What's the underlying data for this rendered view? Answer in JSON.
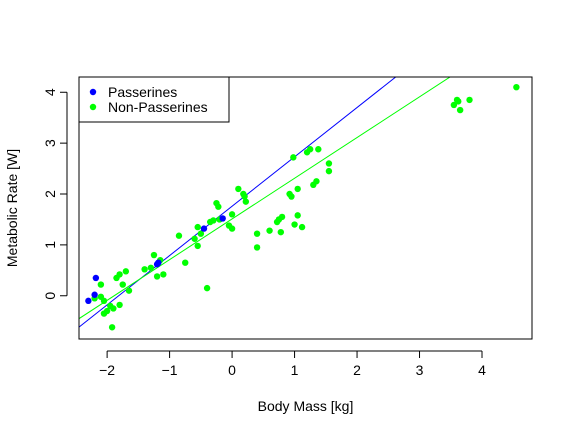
{
  "chart_data": {
    "type": "scatter",
    "xlabel": "Body Mass [kg]",
    "ylabel": "Metabolic Rate [W]",
    "xlim": [
      -2.45,
      4.8
    ],
    "ylim": [
      -0.85,
      4.3
    ],
    "xticks": [
      -2,
      -1,
      0,
      1,
      2,
      3,
      4
    ],
    "yticks": [
      0,
      1,
      2,
      3,
      4
    ],
    "grid": false,
    "legend_position": "top-left",
    "series": [
      {
        "name": "Passerines",
        "color": "#0000ff",
        "points": [
          [
            -2.3,
            -0.1
          ],
          [
            -2.2,
            0.02
          ],
          [
            -2.18,
            0.35
          ],
          [
            -1.2,
            0.62
          ],
          [
            -1.18,
            0.65
          ],
          [
            -0.45,
            1.32
          ],
          [
            -0.15,
            1.52
          ]
        ],
        "fit": {
          "intercept": 1.76,
          "slope": 0.97
        }
      },
      {
        "name": "Non-Passerines",
        "color": "#00ff00",
        "points": [
          [
            -2.2,
            -0.05
          ],
          [
            -2.1,
            0.22
          ],
          [
            -2.05,
            -0.1
          ],
          [
            -2.1,
            -0.02
          ],
          [
            -2.05,
            -0.35
          ],
          [
            -2.0,
            -0.3
          ],
          [
            -1.95,
            -0.2
          ],
          [
            -1.92,
            -0.62
          ],
          [
            -1.9,
            -0.25
          ],
          [
            -1.85,
            0.35
          ],
          [
            -1.8,
            0.42
          ],
          [
            -1.8,
            -0.18
          ],
          [
            -1.75,
            0.22
          ],
          [
            -1.7,
            0.48
          ],
          [
            -1.65,
            0.1
          ],
          [
            -1.4,
            0.52
          ],
          [
            -1.3,
            0.55
          ],
          [
            -1.25,
            0.8
          ],
          [
            -1.2,
            0.38
          ],
          [
            -1.15,
            0.7
          ],
          [
            -1.1,
            0.42
          ],
          [
            -0.85,
            1.18
          ],
          [
            -0.75,
            0.65
          ],
          [
            -0.6,
            1.12
          ],
          [
            -0.55,
            1.35
          ],
          [
            -0.55,
            0.98
          ],
          [
            -0.5,
            1.22
          ],
          [
            -0.4,
            0.15
          ],
          [
            -0.35,
            1.45
          ],
          [
            -0.3,
            1.48
          ],
          [
            -0.25,
            1.82
          ],
          [
            -0.22,
            1.75
          ],
          [
            -0.2,
            1.5
          ],
          [
            -0.05,
            1.38
          ],
          [
            0.0,
            1.32
          ],
          [
            0.0,
            1.6
          ],
          [
            0.1,
            2.1
          ],
          [
            0.18,
            2.0
          ],
          [
            0.2,
            1.95
          ],
          [
            0.22,
            1.85
          ],
          [
            0.4,
            1.22
          ],
          [
            0.4,
            0.95
          ],
          [
            0.6,
            1.28
          ],
          [
            0.72,
            1.45
          ],
          [
            0.75,
            1.5
          ],
          [
            0.78,
            1.25
          ],
          [
            0.8,
            1.55
          ],
          [
            0.92,
            2.0
          ],
          [
            0.95,
            1.95
          ],
          [
            0.98,
            2.72
          ],
          [
            1.0,
            1.4
          ],
          [
            1.05,
            1.58
          ],
          [
            1.05,
            2.1
          ],
          [
            1.12,
            1.35
          ],
          [
            1.2,
            2.82
          ],
          [
            1.25,
            2.88
          ],
          [
            1.3,
            2.18
          ],
          [
            1.35,
            2.25
          ],
          [
            1.38,
            2.88
          ],
          [
            1.55,
            2.6
          ],
          [
            1.55,
            2.45
          ],
          [
            3.55,
            3.75
          ],
          [
            3.6,
            3.85
          ],
          [
            3.62,
            3.82
          ],
          [
            3.65,
            3.65
          ],
          [
            3.8,
            3.85
          ],
          [
            4.55,
            4.1
          ]
        ],
        "fit": {
          "intercept": 1.51,
          "slope": 0.8
        }
      }
    ]
  }
}
